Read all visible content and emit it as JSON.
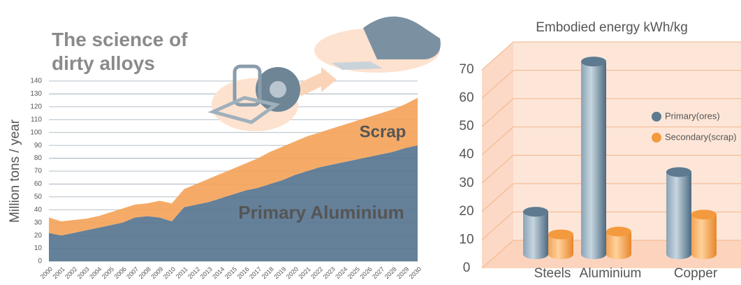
{
  "chart_data": [
    {
      "type": "area",
      "title": "The science of dirty alloys",
      "y_label": "Million tons / year",
      "categories": [
        "2000",
        "2001",
        "2002",
        "2003",
        "2004",
        "2005",
        "2006",
        "2007",
        "2008",
        "2009",
        "2010",
        "2011",
        "2012",
        "2013",
        "2014",
        "2015",
        "2016",
        "2017",
        "2018",
        "2019",
        "2020",
        "2021",
        "2022",
        "2023",
        "2024",
        "2025",
        "2026",
        "2027",
        "2028",
        "2029",
        "2030"
      ],
      "stacked": true,
      "series": [
        {
          "name": "Primary Aluminium",
          "color": "#587590",
          "values": [
            22,
            20,
            22,
            24,
            26,
            28,
            30,
            34,
            35,
            34,
            31,
            42,
            44,
            46,
            49,
            52,
            55,
            57,
            60,
            63,
            67,
            70,
            73,
            75,
            77,
            79,
            81,
            83,
            85,
            88,
            90
          ]
        },
        {
          "name": "Scrap",
          "color": "#f4a45a",
          "values": [
            12,
            11,
            10,
            9,
            9,
            10,
            11,
            10,
            10,
            13,
            14,
            14,
            16,
            18,
            19,
            20,
            21,
            23,
            25,
            26,
            26,
            27,
            27,
            28,
            29,
            30,
            31,
            32,
            33,
            34,
            37
          ]
        }
      ],
      "ylim": [
        0,
        140
      ],
      "yticks": [
        0,
        10,
        20,
        30,
        40,
        50,
        60,
        70,
        80,
        90,
        100,
        110,
        120,
        130,
        140
      ],
      "grid": true
    },
    {
      "type": "bar3d",
      "title": "Embodied energy kWh/kg",
      "categories": [
        "Steels",
        "Aluminium",
        "Copper"
      ],
      "series": [
        {
          "name": "Primary(ores)",
          "color": "#5d7a90",
          "values": [
            15,
            68,
            29
          ]
        },
        {
          "name": "Secondary(scrap)",
          "color": "#f49a3e",
          "values": [
            7,
            8,
            14
          ]
        }
      ],
      "ylim": [
        0,
        70
      ],
      "yticks": [
        0,
        10,
        20,
        30,
        40,
        50,
        60,
        70
      ],
      "grid": true,
      "legend": "right"
    }
  ]
}
